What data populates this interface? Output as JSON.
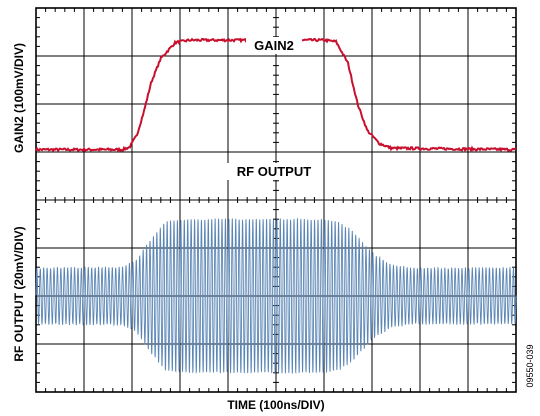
{
  "chart_data": {
    "type": "line",
    "figure_id": "09550-039",
    "xlabel": "TIME (100ns/DIV)",
    "grid": true,
    "x_divisions": 10,
    "y_divisions": 8,
    "x_units": "ns",
    "x_per_div": 100,
    "x_range": [
      0,
      1000
    ],
    "series": [
      {
        "name": "GAIN2",
        "ylabel": "GAIN2 (100mV/DIV)",
        "color": "#c8102e",
        "units": "mV",
        "per_div": 100,
        "y_range_div": [
          4,
          8
        ],
        "low_level_div": 5.05,
        "high_level_div": 7.33,
        "x": [
          0,
          180,
          195,
          210,
          225,
          240,
          260,
          290,
          320,
          600,
          625,
          650,
          670,
          690,
          715,
          740,
          1000
        ],
        "y_div": [
          5.05,
          5.05,
          5.1,
          5.35,
          5.85,
          6.45,
          6.95,
          7.28,
          7.33,
          7.33,
          7.3,
          6.85,
          6.0,
          5.45,
          5.18,
          5.08,
          5.05
        ]
      },
      {
        "name": "RF OUTPUT",
        "ylabel": "RF OUTPUT (20mV/DIV)",
        "color": "#5a85b5",
        "units": "mV",
        "per_div": 20,
        "center_div": 2.0,
        "carrier_cycles_per_div": 14,
        "envelope_x": [
          0,
          180,
          210,
          240,
          270,
          320,
          600,
          630,
          660,
          700,
          740,
          780,
          1000
        ],
        "envelope_half_amplitude_div": [
          0.58,
          0.6,
          0.75,
          1.2,
          1.55,
          1.6,
          1.6,
          1.55,
          1.35,
          0.9,
          0.65,
          0.58,
          0.58
        ]
      }
    ]
  }
}
